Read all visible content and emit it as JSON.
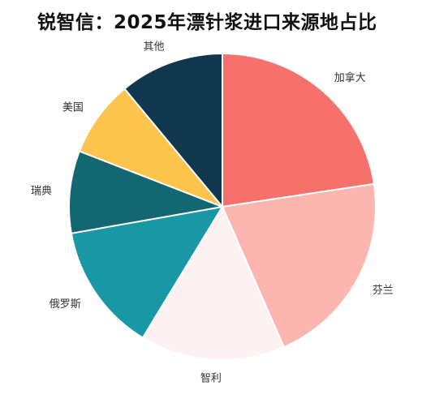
{
  "chart_data": {
    "type": "pie",
    "title": "锐智信：2025年漂针浆进口来源地占比",
    "labels": [
      "加拿大",
      "芬兰",
      "智利",
      "俄罗斯",
      "瑞典",
      "美国",
      "其他"
    ],
    "values": [
      22.4,
      20.6,
      15.1,
      13.4,
      8.6,
      8.0,
      10.9
    ],
    "unit": "%",
    "colors": [
      "#F6716C",
      "#FDB5B0",
      "#FDF2F2",
      "#1A97A5",
      "#136770",
      "#FCC44C",
      "#10374D"
    ],
    "start_angle_deg": 0,
    "direction": "clockwise",
    "legend": "none"
  }
}
